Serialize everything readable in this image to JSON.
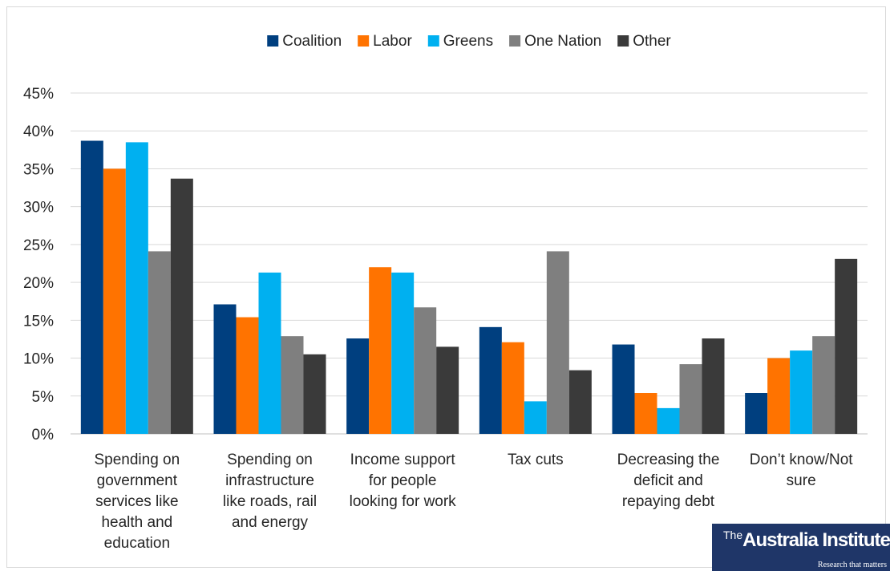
{
  "chart_data": {
    "type": "bar",
    "categories": [
      [
        "Spending on",
        "government",
        "services like",
        "health and",
        "education"
      ],
      [
        "Spending on",
        "infrastructure",
        "like roads, rail",
        "and energy"
      ],
      [
        "Income support",
        "for people",
        "looking for work"
      ],
      [
        "Tax cuts"
      ],
      [
        "Decreasing the",
        "deficit and",
        "repaying debt"
      ],
      [
        "Don’t know/Not",
        "sure"
      ]
    ],
    "series": [
      {
        "name": "Coalition",
        "color": "#003f7f",
        "values": [
          38.7,
          17.1,
          12.6,
          14.1,
          11.8,
          5.4
        ]
      },
      {
        "name": "Labor",
        "color": "#ff7300",
        "values": [
          35.0,
          15.4,
          22.0,
          12.1,
          5.4,
          10.0
        ]
      },
      {
        "name": "Greens",
        "color": "#00b0f0",
        "values": [
          38.5,
          21.3,
          21.3,
          4.3,
          3.4,
          11.0
        ]
      },
      {
        "name": "One Nation",
        "color": "#7f7f7f",
        "values": [
          24.1,
          12.9,
          16.7,
          24.1,
          9.2,
          12.9
        ]
      },
      {
        "name": "Other",
        "color": "#3a3a3a",
        "values": [
          33.7,
          10.5,
          11.5,
          8.4,
          12.6,
          23.1
        ]
      }
    ],
    "y_ticks": [
      "0%",
      "5%",
      "10%",
      "15%",
      "20%",
      "25%",
      "30%",
      "35%",
      "40%",
      "45%"
    ],
    "ylim": [
      0,
      45
    ],
    "grid": true,
    "legend_position": "top"
  },
  "logo": {
    "prefix": "The",
    "name": "Australia Institute",
    "tagline": "Research that matters"
  }
}
